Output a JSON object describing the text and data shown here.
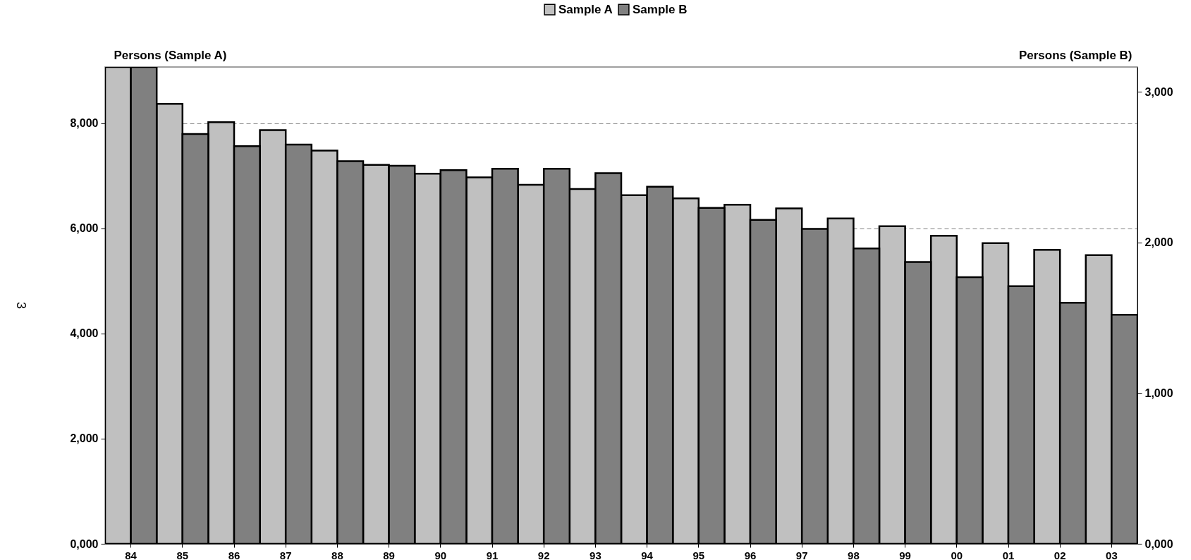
{
  "chart_data": {
    "type": "bar",
    "ylabel": "Persons (Sample A)",
    "y2label": "Persons (Sample B)",
    "categories": [
      "84",
      "85",
      "86",
      "87",
      "88",
      "89",
      "90",
      "91",
      "92",
      "93",
      "94",
      "95",
      "96",
      "97",
      "98",
      "99",
      "00",
      "01",
      "02",
      "03"
    ],
    "series": [
      {
        "name": "Sample A",
        "color": "#c0c0c0",
        "values": [
          9.07,
          8.37,
          8.02,
          7.87,
          7.48,
          7.21,
          7.04,
          6.97,
          6.83,
          6.75,
          6.63,
          6.57,
          6.45,
          6.38,
          6.19,
          6.04,
          5.86,
          5.72,
          5.59,
          5.49
        ]
      },
      {
        "name": "Sample B",
        "color": "#808080",
        "axis": "y2",
        "values": [
          3.165,
          2.72,
          2.64,
          2.65,
          2.54,
          2.51,
          2.48,
          2.49,
          2.49,
          2.46,
          2.37,
          2.23,
          2.15,
          2.09,
          1.96,
          1.87,
          1.77,
          1.71,
          1.6,
          1.52
        ]
      }
    ],
    "ylim": [
      0,
      9.07
    ],
    "yticks": [
      {
        "value": 0,
        "label": "0,000"
      },
      {
        "value": 2,
        "label": "2,000"
      },
      {
        "value": 4,
        "label": "4,000"
      },
      {
        "value": 6,
        "label": "6,000"
      },
      {
        "value": 8,
        "label": "8,000"
      }
    ],
    "y2lim": [
      0,
      3.165
    ],
    "y2ticks": [
      {
        "value": 0,
        "label": "0,000"
      },
      {
        "value": 1,
        "label": "1,000"
      },
      {
        "value": 2,
        "label": "2,000"
      },
      {
        "value": 3,
        "label": "3,000"
      }
    ],
    "annotations": [
      "3"
    ],
    "grid": "y",
    "legend": "top"
  }
}
